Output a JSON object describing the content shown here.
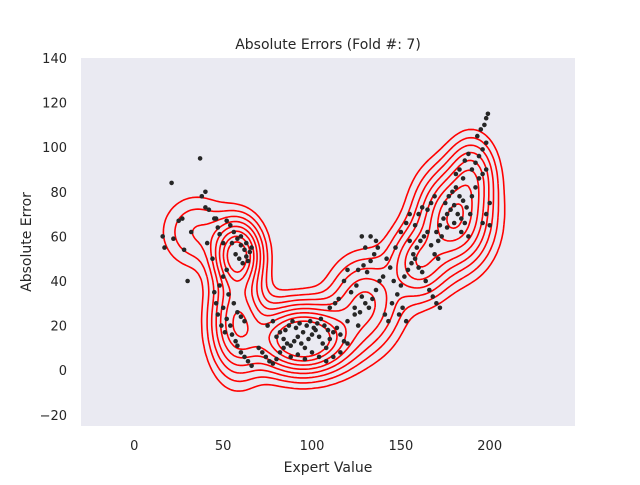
{
  "chart_data": {
    "type": "scatter",
    "title": "Absolute Errors (Fold #: 7)",
    "xlabel": "Expert Value",
    "ylabel": "Absolute Error",
    "xlim": [
      -30,
      248
    ],
    "ylim": [
      -25,
      140
    ],
    "xticks": [
      0,
      50,
      100,
      150,
      200
    ],
    "xtick_labels": [
      "0",
      "50",
      "100",
      "150",
      "200"
    ],
    "yticks": [
      -20,
      0,
      20,
      40,
      60,
      80,
      100,
      120,
      140
    ],
    "ytick_labels": [
      "−20",
      "0",
      "20",
      "40",
      "60",
      "80",
      "100",
      "120",
      "140"
    ],
    "grid": false,
    "background_color": "#eaeaf2",
    "point_color": "#262626",
    "contour_color": "#ff0000",
    "overlay": "kde-contours",
    "density_components": [
      {
        "mx": 58,
        "my": 52,
        "sx": 8,
        "sy": 9,
        "w": 1.0
      },
      {
        "mx": 95,
        "my": 14,
        "sx": 16,
        "sy": 9,
        "w": 1.3
      },
      {
        "mx": 58,
        "my": 22,
        "sx": 9,
        "sy": 14,
        "w": 0.7
      },
      {
        "mx": 130,
        "my": 30,
        "sx": 12,
        "sy": 12,
        "w": 0.45
      },
      {
        "mx": 180,
        "my": 68,
        "sx": 12,
        "sy": 13,
        "w": 0.9
      },
      {
        "mx": 160,
        "my": 48,
        "sx": 10,
        "sy": 10,
        "w": 0.5
      },
      {
        "mx": 190,
        "my": 88,
        "sx": 8,
        "sy": 10,
        "w": 0.4
      },
      {
        "mx": 35,
        "my": 62,
        "sx": 12,
        "sy": 10,
        "w": 0.2
      }
    ],
    "contour_levels": [
      0.06,
      0.12,
      0.2,
      0.3,
      0.42,
      0.56,
      0.72,
      0.88
    ],
    "points": [
      [
        16,
        60
      ],
      [
        17,
        55
      ],
      [
        21,
        84
      ],
      [
        22,
        59
      ],
      [
        25,
        67
      ],
      [
        27,
        68
      ],
      [
        28,
        54
      ],
      [
        30,
        40
      ],
      [
        32,
        62
      ],
      [
        37,
        95
      ],
      [
        38,
        78
      ],
      [
        40,
        80
      ],
      [
        40,
        73
      ],
      [
        41,
        57
      ],
      [
        42,
        72
      ],
      [
        45,
        68
      ],
      [
        46,
        68
      ],
      [
        47,
        64
      ],
      [
        48,
        61
      ],
      [
        50,
        57
      ],
      [
        52,
        67
      ],
      [
        54,
        65
      ],
      [
        56,
        62
      ],
      [
        58,
        59
      ],
      [
        60,
        56
      ],
      [
        62,
        54
      ],
      [
        63,
        51
      ],
      [
        64,
        49
      ],
      [
        65,
        53
      ],
      [
        55,
        57
      ],
      [
        57,
        52
      ],
      [
        59,
        50
      ],
      [
        61,
        48
      ],
      [
        60,
        60
      ],
      [
        63,
        57
      ],
      [
        66,
        55
      ],
      [
        52,
        45
      ],
      [
        50,
        42
      ],
      [
        48,
        38
      ],
      [
        46,
        30
      ],
      [
        44,
        50
      ],
      [
        50,
        28
      ],
      [
        52,
        23
      ],
      [
        54,
        20
      ],
      [
        55,
        16
      ],
      [
        57,
        13
      ],
      [
        58,
        11
      ],
      [
        60,
        8
      ],
      [
        62,
        6
      ],
      [
        64,
        4
      ],
      [
        66,
        2
      ],
      [
        53,
        34
      ],
      [
        56,
        30
      ],
      [
        58,
        26
      ],
      [
        60,
        24
      ],
      [
        62,
        22
      ],
      [
        49,
        20
      ],
      [
        51,
        17
      ],
      [
        47,
        25
      ],
      [
        45,
        35
      ],
      [
        70,
        10
      ],
      [
        72,
        8
      ],
      [
        74,
        6
      ],
      [
        76,
        4
      ],
      [
        78,
        3
      ],
      [
        80,
        5
      ],
      [
        82,
        8
      ],
      [
        84,
        10
      ],
      [
        86,
        12
      ],
      [
        88,
        11
      ],
      [
        90,
        13
      ],
      [
        92,
        15
      ],
      [
        94,
        12
      ],
      [
        96,
        10
      ],
      [
        98,
        14
      ],
      [
        100,
        16
      ],
      [
        102,
        18
      ],
      [
        104,
        15
      ],
      [
        106,
        12
      ],
      [
        108,
        10
      ],
      [
        110,
        14
      ],
      [
        112,
        17
      ],
      [
        114,
        19
      ],
      [
        116,
        16
      ],
      [
        118,
        13
      ],
      [
        120,
        12
      ],
      [
        85,
        18
      ],
      [
        87,
        20
      ],
      [
        89,
        22
      ],
      [
        91,
        19
      ],
      [
        93,
        21
      ],
      [
        95,
        17
      ],
      [
        97,
        20
      ],
      [
        99,
        22
      ],
      [
        101,
        19
      ],
      [
        103,
        21
      ],
      [
        105,
        23
      ],
      [
        107,
        20
      ],
      [
        109,
        18
      ],
      [
        80,
        15
      ],
      [
        82,
        17
      ],
      [
        84,
        14
      ],
      [
        75,
        20
      ],
      [
        78,
        22
      ],
      [
        88,
        6
      ],
      [
        92,
        7
      ],
      [
        96,
        5
      ],
      [
        100,
        8
      ],
      [
        104,
        6
      ],
      [
        108,
        4
      ],
      [
        112,
        6
      ],
      [
        116,
        8
      ],
      [
        120,
        22
      ],
      [
        124,
        25
      ],
      [
        126,
        20
      ],
      [
        122,
        35
      ],
      [
        125,
        38
      ],
      [
        128,
        33
      ],
      [
        130,
        30
      ],
      [
        132,
        28
      ],
      [
        134,
        32
      ],
      [
        136,
        36
      ],
      [
        138,
        40
      ],
      [
        140,
        42
      ],
      [
        126,
        45
      ],
      [
        129,
        47
      ],
      [
        131,
        44
      ],
      [
        133,
        49
      ],
      [
        135,
        52
      ],
      [
        137,
        55
      ],
      [
        120,
        45
      ],
      [
        118,
        40
      ],
      [
        115,
        32
      ],
      [
        113,
        30
      ],
      [
        110,
        28
      ],
      [
        128,
        60
      ],
      [
        130,
        55
      ],
      [
        133,
        60
      ],
      [
        136,
        58
      ],
      [
        124,
        28
      ],
      [
        127,
        26
      ],
      [
        141,
        25
      ],
      [
        143,
        22
      ],
      [
        145,
        30
      ],
      [
        148,
        34
      ],
      [
        150,
        38
      ],
      [
        152,
        42
      ],
      [
        154,
        45
      ],
      [
        156,
        48
      ],
      [
        158,
        50
      ],
      [
        160,
        46
      ],
      [
        162,
        44
      ],
      [
        157,
        52
      ],
      [
        159,
        55
      ],
      [
        161,
        58
      ],
      [
        163,
        60
      ],
      [
        165,
        62
      ],
      [
        167,
        56
      ],
      [
        169,
        52
      ],
      [
        171,
        50
      ],
      [
        149,
        25
      ],
      [
        151,
        28
      ],
      [
        153,
        22
      ],
      [
        146,
        40
      ],
      [
        144,
        46
      ],
      [
        142,
        50
      ],
      [
        147,
        55
      ],
      [
        150,
        62
      ],
      [
        153,
        66
      ],
      [
        155,
        58
      ],
      [
        164,
        40
      ],
      [
        166,
        36
      ],
      [
        168,
        33
      ],
      [
        170,
        30
      ],
      [
        172,
        28
      ],
      [
        170,
        62
      ],
      [
        172,
        65
      ],
      [
        174,
        68
      ],
      [
        176,
        70
      ],
      [
        178,
        72
      ],
      [
        180,
        74
      ],
      [
        182,
        70
      ],
      [
        184,
        68
      ],
      [
        186,
        66
      ],
      [
        175,
        75
      ],
      [
        177,
        78
      ],
      [
        179,
        80
      ],
      [
        181,
        82
      ],
      [
        183,
        78
      ],
      [
        185,
        76
      ],
      [
        187,
        73
      ],
      [
        189,
        70
      ],
      [
        173,
        60
      ],
      [
        171,
        58
      ],
      [
        176,
        64
      ],
      [
        180,
        66
      ],
      [
        184,
        62
      ],
      [
        188,
        60
      ],
      [
        190,
        78
      ],
      [
        192,
        82
      ],
      [
        194,
        86
      ],
      [
        196,
        88
      ],
      [
        198,
        90
      ],
      [
        190,
        90
      ],
      [
        192,
        93
      ],
      [
        194,
        96
      ],
      [
        196,
        99
      ],
      [
        198,
        102
      ],
      [
        197,
        110
      ],
      [
        198,
        113
      ],
      [
        199,
        115
      ],
      [
        193,
        105
      ],
      [
        195,
        108
      ],
      [
        186,
        94
      ],
      [
        188,
        97
      ],
      [
        165,
        72
      ],
      [
        167,
        75
      ],
      [
        169,
        78
      ],
      [
        160,
        70
      ],
      [
        162,
        73
      ],
      [
        158,
        65
      ],
      [
        155,
        70
      ],
      [
        181,
        88
      ],
      [
        183,
        90
      ],
      [
        185,
        86
      ],
      [
        200,
        75
      ],
      [
        198,
        70
      ],
      [
        196,
        66
      ],
      [
        200,
        65
      ]
    ]
  }
}
